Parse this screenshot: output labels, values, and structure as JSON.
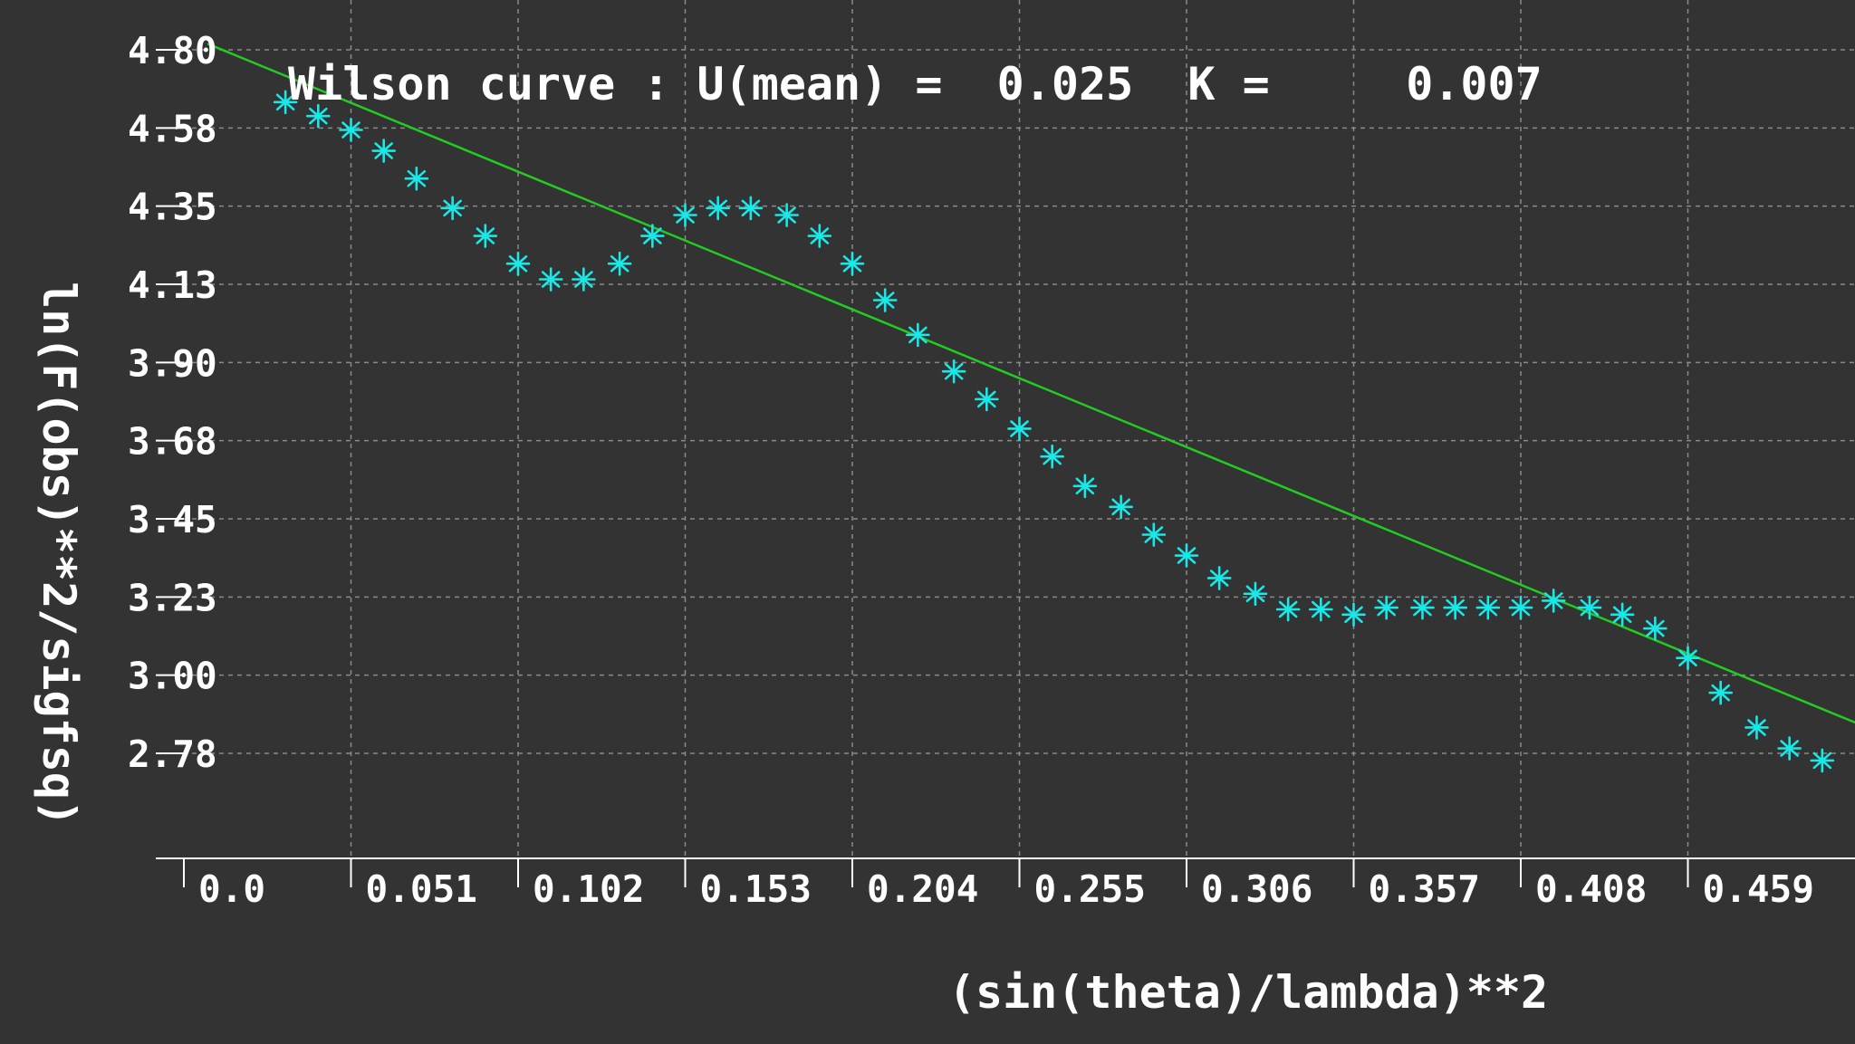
{
  "chart_data": {
    "type": "scatter",
    "title": "Wilson curve : U(mean) =  0.025  K =     0.007",
    "xlabel": "(sin(theta)/lambda)**2",
    "ylabel": "ln(F(obs)**2/sigfsq)",
    "xlim": [
      0.0,
      0.51
    ],
    "ylim": [
      2.68,
      4.82
    ],
    "x_ticks": [
      "0.0",
      "0.051",
      "0.102",
      "0.153",
      "0.204",
      "0.255",
      "0.306",
      "0.357",
      "0.408",
      "0.459"
    ],
    "x_tick_values": [
      0.0,
      0.051,
      0.102,
      0.153,
      0.204,
      0.255,
      0.306,
      0.357,
      0.408,
      0.459
    ],
    "y_ticks": [
      "4.80",
      "4.58",
      "4.35",
      "4.13",
      "3.90",
      "3.68",
      "3.45",
      "3.23",
      "3.00",
      "2.78"
    ],
    "y_tick_values": [
      4.8,
      4.575,
      4.35,
      4.125,
      3.9,
      3.675,
      3.45,
      3.225,
      3.0,
      2.775
    ],
    "grid": true,
    "colors": {
      "background": "#333333",
      "points": "#18e8e8",
      "fit_line": "#22cc22",
      "grid": "#8a8a8a",
      "axis": "#ffffff",
      "text": "#ffffff"
    },
    "series": [
      {
        "type": "scatter",
        "marker": "asterisk",
        "x": [
          0.031,
          0.041,
          0.051,
          0.061,
          0.071,
          0.082,
          0.092,
          0.102,
          0.112,
          0.122,
          0.133,
          0.143,
          0.153,
          0.163,
          0.173,
          0.184,
          0.194,
          0.204,
          0.214,
          0.224,
          0.235,
          0.245,
          0.255,
          0.265,
          0.275,
          0.286,
          0.296,
          0.306,
          0.316,
          0.327,
          0.337,
          0.347,
          0.357,
          0.367,
          0.378,
          0.388,
          0.398,
          0.408,
          0.418,
          0.429,
          0.439,
          0.449,
          0.459,
          0.469,
          0.48,
          0.49,
          0.5
        ],
        "y": [
          4.665,
          4.625,
          4.585,
          4.525,
          4.445,
          4.36,
          4.28,
          4.2,
          4.155,
          4.155,
          4.2,
          4.28,
          4.34,
          4.36,
          4.36,
          4.34,
          4.28,
          4.2,
          4.095,
          3.995,
          3.89,
          3.81,
          3.725,
          3.645,
          3.56,
          3.5,
          3.42,
          3.36,
          3.295,
          3.25,
          3.205,
          3.205,
          3.19,
          3.21,
          3.21,
          3.21,
          3.21,
          3.21,
          3.23,
          3.21,
          3.19,
          3.15,
          3.065,
          2.965,
          2.865,
          2.805,
          2.77
        ]
      },
      {
        "type": "line",
        "x": [
          0.01,
          0.51
        ],
        "y": [
          4.82,
          2.86
        ]
      }
    ]
  }
}
